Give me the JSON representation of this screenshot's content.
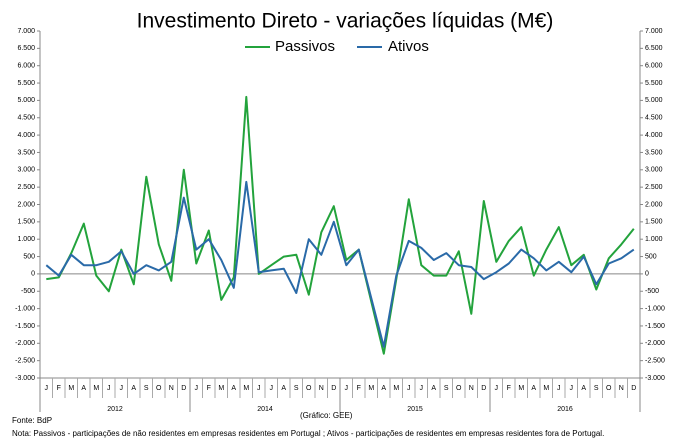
{
  "chart_data": {
    "type": "line",
    "title": "Investimento Direto - variações líquidas (M€)",
    "categories": [
      "J",
      "F",
      "M",
      "A",
      "M",
      "J",
      "J",
      "A",
      "S",
      "O",
      "N",
      "D",
      "J",
      "F",
      "M",
      "A",
      "M",
      "J",
      "J",
      "A",
      "S",
      "O",
      "N",
      "D",
      "J",
      "F",
      "M",
      "A",
      "M",
      "J",
      "J",
      "A",
      "S",
      "O",
      "N",
      "D",
      "J",
      "F",
      "M",
      "A",
      "M",
      "J",
      "J",
      "A",
      "S",
      "O",
      "N",
      "D"
    ],
    "years": [
      "2012",
      "2014",
      "2015",
      "2016"
    ],
    "series": [
      {
        "name": "Passivos",
        "color": "#23a33c",
        "values": [
          -150,
          -100,
          600,
          1450,
          -50,
          -500,
          700,
          -300,
          2800,
          850,
          -200,
          3000,
          300,
          1250,
          -750,
          -100,
          5100,
          0,
          250,
          500,
          550,
          -600,
          1200,
          1950,
          400,
          700,
          -800,
          -2300,
          -150,
          2150,
          250,
          -50,
          -50,
          650,
          -1150,
          2100,
          350,
          950,
          1350,
          -50,
          700,
          1350,
          250,
          550,
          -450,
          450,
          850,
          1300
        ]
      },
      {
        "name": "Ativos",
        "color": "#2a6aa8",
        "values": [
          250,
          -50,
          550,
          250,
          250,
          350,
          650,
          0,
          250,
          100,
          350,
          2200,
          700,
          1000,
          400,
          -400,
          2650,
          50,
          100,
          150,
          -550,
          1000,
          550,
          1500,
          250,
          700,
          -700,
          -2100,
          -50,
          950,
          750,
          400,
          600,
          250,
          200,
          -150,
          50,
          300,
          700,
          450,
          100,
          350,
          50,
          500,
          -300,
          300,
          450,
          700
        ]
      }
    ],
    "ylim": [
      -3000,
      7000
    ],
    "yticks": [
      {
        "value": -3000,
        "label": "-3.000"
      },
      {
        "value": -2500,
        "label": "-2.500"
      },
      {
        "value": -2000,
        "label": "-2.000"
      },
      {
        "value": -1500,
        "label": "-1.500"
      },
      {
        "value": -1000,
        "label": "-1.000"
      },
      -500,
      0,
      500,
      {
        "value": 1000,
        "label": "1.000"
      },
      {
        "value": 1500,
        "label": "1.500"
      },
      {
        "value": 2000,
        "label": "2.000"
      },
      {
        "value": 2500,
        "label": "2.500"
      },
      {
        "value": 3000,
        "label": "3.000"
      },
      {
        "value": 3500,
        "label": "3.500"
      },
      {
        "value": 4000,
        "label": "4.000"
      },
      {
        "value": 4500,
        "label": "4.500"
      },
      {
        "value": 5000,
        "label": "5.000"
      },
      {
        "value": 5500,
        "label": "5.500"
      },
      {
        "value": 6000,
        "label": "6.000"
      },
      {
        "value": 6500,
        "label": "6.500"
      },
      {
        "value": 7000,
        "label": "7.000"
      }
    ],
    "y2lim": [
      -3000,
      7000
    ],
    "y2ticks": [
      {
        "value": -3000,
        "label": "-3.000"
      },
      {
        "value": -2500,
        "label": "-2.500"
      },
      {
        "value": -2000,
        "label": "-2.000"
      },
      {
        "value": -1500,
        "label": "-1.500"
      },
      {
        "value": -1000,
        "label": "-1.000"
      },
      -500,
      0,
      500,
      {
        "value": 1000,
        "label": "1.000"
      },
      {
        "value": 1500,
        "label": "1.500"
      },
      {
        "value": 2000,
        "label": "2.000"
      },
      {
        "value": 2500,
        "label": "2.500"
      },
      {
        "value": 3000,
        "label": "3.000"
      },
      {
        "value": 3500,
        "label": "3.500"
      },
      {
        "value": 4000,
        "label": "4.000"
      },
      {
        "value": 4500,
        "label": "4.500"
      },
      {
        "value": 5000,
        "label": "5.000"
      },
      {
        "value": 5500,
        "label": "5.500"
      },
      {
        "value": 6000,
        "label": "6.000"
      },
      {
        "value": 6500,
        "label": "6.500"
      },
      {
        "value": 7000,
        "label": "7.000"
      }
    ],
    "source": "Fonte: BdP",
    "credit": "(Gráfico: GEE)",
    "note": "Nota: Passivos - participações de não residentes em empresas residentes em Portugal ; Ativos - participações de residentes em empresas residentes fora de Portugal."
  }
}
